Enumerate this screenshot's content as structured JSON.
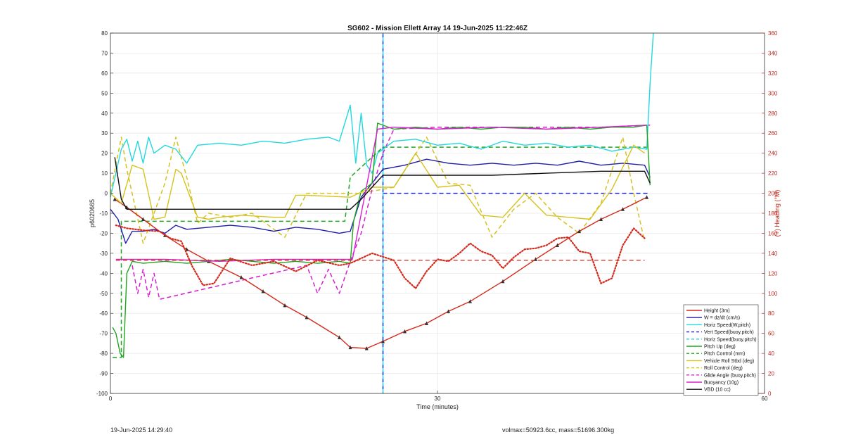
{
  "footer": {
    "left": "19-Jun-2025 14:29:40",
    "right": "volmax=50923.6cc, mass=51696.300kg"
  },
  "chart_data": {
    "type": "line",
    "title": "SG602 - Mission Ellett Array 14 19-Jun-2025 11:22:46Z",
    "xlabel": "Time (minutes)",
    "ylabel": "p6020665",
    "y2label": "(+) Heading (°M)",
    "xlim": [
      0,
      60
    ],
    "ylim": [
      -100,
      80
    ],
    "y2lim": [
      0,
      360
    ],
    "xticks": [
      0,
      30,
      60
    ],
    "yticks": [
      -100,
      -90,
      -80,
      -70,
      -60,
      -50,
      -40,
      -30,
      -20,
      -10,
      0,
      10,
      20,
      30,
      40,
      50,
      60,
      70,
      80
    ],
    "y2ticks": [
      0,
      20,
      40,
      60,
      80,
      100,
      120,
      140,
      160,
      180,
      200,
      220,
      240,
      260,
      280,
      300,
      320,
      340,
      360
    ],
    "grid": true,
    "legend_position": "bottom-right",
    "colors": {
      "red": "#d42a1c",
      "navy": "#1f1fa8",
      "cyan": "#22d8e0",
      "blue": "#1a22d8",
      "green": "#1fa51f",
      "yellow": "#d6c21f",
      "magenta": "#d81fd0",
      "black": "#111111"
    },
    "series": [
      {
        "name": "Height (3m)",
        "color": "red",
        "style": "solid",
        "x": [
          0.4,
          1.5,
          3,
          5,
          7,
          9,
          12,
          14,
          16,
          18,
          21,
          22,
          23.5,
          25,
          27,
          29,
          31,
          33,
          36,
          39,
          41,
          43,
          45,
          47,
          49.2
        ],
        "y": [
          -3,
          -7,
          -13,
          -21,
          -28,
          -34,
          -42,
          -49,
          -56,
          -62,
          -72,
          -77,
          -77.5,
          -74,
          -69,
          -65,
          -59,
          -54,
          -44,
          -33,
          -26,
          -19,
          -13,
          -8,
          -2
        ]
      },
      {
        "name": "W = dz/dt (cm/s)",
        "color": "navy",
        "style": "solid",
        "x": [
          0,
          0.7,
          1.4,
          2,
          3,
          4,
          5,
          6,
          7,
          9,
          11,
          13,
          15,
          17,
          19,
          21,
          22,
          23,
          24,
          25,
          27,
          29,
          31,
          33,
          35,
          37,
          39,
          41,
          43,
          45,
          47,
          49,
          49.5
        ],
        "y": [
          -8,
          -13,
          -25,
          -19,
          -19,
          -18,
          -20,
          -16,
          -18,
          -17,
          -16,
          -17,
          -19,
          -17,
          -18,
          -20,
          -19,
          -2,
          5,
          12,
          14,
          17,
          15,
          14,
          15,
          14,
          15,
          14,
          16,
          14,
          15,
          14,
          8
        ]
      },
      {
        "name": "Horiz Speed(W,pitch)",
        "color": "cyan",
        "style": "solid",
        "x": [
          0,
          1,
          1.5,
          2,
          2.5,
          3,
          3.5,
          4,
          5,
          6,
          7,
          8,
          10,
          12,
          14,
          16,
          18,
          20,
          21,
          22,
          22.5,
          23,
          23.5,
          24,
          24.5,
          26,
          28,
          30,
          32,
          34,
          36,
          38,
          40,
          42,
          44,
          46,
          48,
          49.2,
          49.5,
          49.8
        ],
        "y": [
          -2,
          22,
          27,
          16,
          26,
          15,
          28,
          20,
          24,
          22,
          15,
          24,
          25,
          24,
          26,
          25,
          27,
          28,
          26,
          44,
          15,
          40,
          14,
          10,
          20,
          26,
          27,
          24,
          25,
          22,
          26,
          24,
          25,
          23,
          24,
          21,
          23,
          22,
          55,
          80
        ]
      },
      {
        "name": "Vert Speed(buoy.pitch)",
        "color": "blue",
        "style": "dash",
        "x": [
          25,
          49.5
        ],
        "y": [
          0,
          0
        ],
        "vline_x": 25
      },
      {
        "name": "Horiz Speed(buoy.pitch)",
        "color": "cyan",
        "style": "dash",
        "x": [
          25,
          25
        ],
        "y": [
          -100,
          80
        ]
      },
      {
        "name": "Pitch Up (deg)",
        "color": "green",
        "style": "solid",
        "x": [
          0.2,
          0.5,
          0.9,
          1.2,
          1.5,
          2,
          3,
          5,
          7,
          9,
          11,
          13,
          15,
          17,
          19,
          21,
          22,
          22.3,
          23,
          24,
          24.5,
          26,
          28,
          30,
          32,
          34,
          36,
          38,
          40,
          42,
          44,
          46,
          48,
          49.2,
          49.5
        ],
        "y": [
          -67,
          -70,
          -80,
          -82,
          -40,
          -34,
          -35,
          -34,
          -35,
          -34,
          -33,
          -34,
          -35,
          -34,
          -35,
          -34,
          -35,
          -14,
          1,
          5,
          35,
          32,
          33,
          32,
          33,
          32,
          33,
          33,
          32,
          33,
          32,
          33,
          33,
          34,
          4
        ]
      },
      {
        "name": "Pitch Control (mm)",
        "color": "green",
        "style": "dash",
        "x": [
          0.2,
          1,
          1,
          21.5,
          22,
          25,
          49.5
        ],
        "y": [
          -82,
          -82,
          -14,
          -14,
          8,
          23,
          23
        ]
      },
      {
        "name": "Vehicle Roll Stbd (deg)",
        "color": "yellow",
        "style": "solid",
        "x": [
          0,
          1,
          2,
          3,
          4,
          5,
          6,
          6.5,
          8,
          9,
          10,
          12,
          15,
          16,
          17,
          18,
          22,
          24,
          26,
          28,
          30,
          32,
          34,
          36,
          38,
          40,
          42,
          44,
          46,
          48,
          49
        ],
        "y": [
          0,
          -5,
          14,
          12,
          -13,
          -12,
          12,
          10,
          -12,
          -13,
          -12,
          -11,
          -12,
          -12,
          -1,
          -1,
          -2,
          3,
          3,
          20,
          3,
          4,
          -11,
          -12,
          0,
          -11,
          -12,
          -13,
          2,
          24,
          20
        ]
      },
      {
        "name": "Roll Control (deg)",
        "color": "yellow",
        "style": "dash",
        "x": [
          0,
          1,
          1.5,
          3,
          4,
          5,
          6,
          7,
          8,
          9,
          11,
          13,
          16,
          18,
          23,
          26,
          29,
          31,
          33,
          35,
          37,
          39,
          41,
          43,
          45,
          47,
          48,
          49
        ],
        "y": [
          0,
          28,
          12,
          -25,
          -10,
          5,
          28,
          8,
          -15,
          -10,
          -12,
          -10,
          -22,
          0,
          0,
          3,
          28,
          5,
          4,
          -22,
          -8,
          0,
          -12,
          -20,
          -5,
          28,
          0,
          -24
        ]
      },
      {
        "name": "Glide Angle (buoy.pitch)",
        "color": "magenta",
        "style": "dash",
        "x": [
          2,
          2.5,
          3,
          3.5,
          4,
          4.5,
          18,
          19,
          20,
          21,
          22,
          23,
          24,
          25,
          26,
          30,
          35,
          40,
          45,
          49.5
        ],
        "y": [
          -36,
          -50,
          -38,
          -52,
          -40,
          -53,
          -36,
          -50,
          -38,
          -50,
          -34,
          -20,
          2,
          20,
          32,
          33,
          33,
          33,
          33,
          34
        ]
      },
      {
        "name": "Buoyancy (10g)",
        "color": "magenta",
        "style": "solid",
        "x": [
          0.5,
          2,
          5,
          10,
          15,
          20,
          22.2,
          24.5,
          26,
          30,
          35,
          40,
          45,
          49.2
        ],
        "y": [
          -33,
          -33,
          -33,
          -34,
          -33,
          -33,
          -33,
          32,
          33,
          32,
          33,
          32,
          33,
          34
        ]
      },
      {
        "name": "VBD (10 cc)",
        "color": "black",
        "style": "solid",
        "x": [
          0.4,
          1,
          1.5,
          10,
          20,
          22,
          23,
          24,
          25,
          30,
          35,
          40,
          45,
          49,
          49.5
        ],
        "y": [
          18,
          -3,
          -8,
          -8,
          -8,
          -8,
          -3,
          3,
          9,
          9,
          9,
          10,
          11,
          11,
          5
        ]
      }
    ],
    "heading": {
      "name": "Heading",
      "color": "red",
      "axis": "right",
      "x": [
        0.5,
        1.5,
        3,
        4.5,
        5.5,
        6.5,
        7.5,
        8.5,
        9.5,
        11,
        13,
        15,
        17,
        19,
        21,
        22,
        24,
        26,
        27,
        28,
        29,
        30,
        31,
        32,
        33,
        34,
        35,
        36,
        37,
        38,
        39,
        40,
        41,
        42,
        43,
        44,
        45,
        46,
        47,
        48,
        49
      ],
      "y": [
        168,
        165,
        163,
        162,
        155,
        152,
        127,
        108,
        110,
        135,
        128,
        132,
        122,
        133,
        128,
        130,
        140,
        133,
        115,
        105,
        122,
        134,
        132,
        140,
        150,
        142,
        138,
        125,
        136,
        144,
        145,
        148,
        155,
        156,
        142,
        140,
        110,
        115,
        148,
        165,
        155
      ],
      "dashed_level": 133
    }
  }
}
